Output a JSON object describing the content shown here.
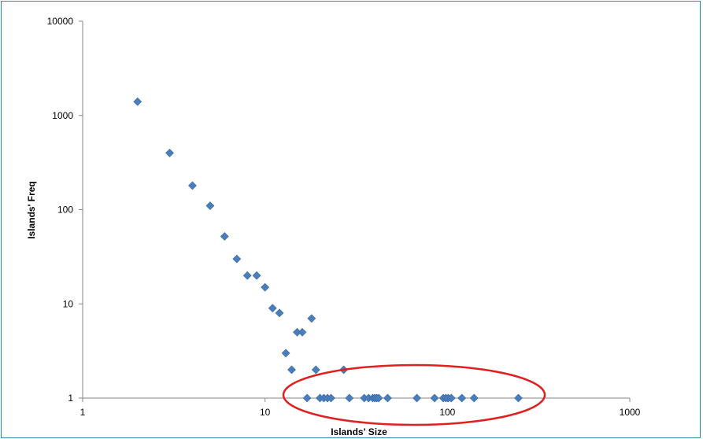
{
  "chart_data": {
    "type": "scatter",
    "title": "",
    "xlabel": "Islands' Size",
    "ylabel": "Islands' Freq",
    "x_scale": "log",
    "y_scale": "log",
    "xlim": [
      1,
      1000
    ],
    "ylim": [
      1,
      10000
    ],
    "x_ticks": [
      "1",
      "10",
      "100",
      "1000"
    ],
    "y_ticks": [
      "1",
      "10",
      "100",
      "1000",
      "10000"
    ],
    "grid": false,
    "legend": "none",
    "marker": "diamond",
    "marker_color": "#4a7ebb",
    "annotation": {
      "shape": "ellipse",
      "color": "#e02020",
      "label": ""
    },
    "points": [
      {
        "x": 2,
        "y": 1400
      },
      {
        "x": 3,
        "y": 400
      },
      {
        "x": 4,
        "y": 180
      },
      {
        "x": 5,
        "y": 110
      },
      {
        "x": 6,
        "y": 52
      },
      {
        "x": 7,
        "y": 30
      },
      {
        "x": 8,
        "y": 20
      },
      {
        "x": 9,
        "y": 20
      },
      {
        "x": 10,
        "y": 15
      },
      {
        "x": 11,
        "y": 9
      },
      {
        "x": 12,
        "y": 8
      },
      {
        "x": 13,
        "y": 3
      },
      {
        "x": 14,
        "y": 2
      },
      {
        "x": 15,
        "y": 5
      },
      {
        "x": 16,
        "y": 5
      },
      {
        "x": 18,
        "y": 7
      },
      {
        "x": 19,
        "y": 2
      },
      {
        "x": 27,
        "y": 2
      },
      {
        "x": 17,
        "y": 1
      },
      {
        "x": 20,
        "y": 1
      },
      {
        "x": 21,
        "y": 1
      },
      {
        "x": 22,
        "y": 1
      },
      {
        "x": 23,
        "y": 1
      },
      {
        "x": 29,
        "y": 1
      },
      {
        "x": 35,
        "y": 1
      },
      {
        "x": 37,
        "y": 1
      },
      {
        "x": 39,
        "y": 1
      },
      {
        "x": 40,
        "y": 1
      },
      {
        "x": 41,
        "y": 1
      },
      {
        "x": 42,
        "y": 1
      },
      {
        "x": 47,
        "y": 1
      },
      {
        "x": 68,
        "y": 1
      },
      {
        "x": 85,
        "y": 1
      },
      {
        "x": 95,
        "y": 1
      },
      {
        "x": 98,
        "y": 1
      },
      {
        "x": 101,
        "y": 1
      },
      {
        "x": 105,
        "y": 1
      },
      {
        "x": 120,
        "y": 1
      },
      {
        "x": 140,
        "y": 1
      },
      {
        "x": 245,
        "y": 1
      }
    ]
  }
}
